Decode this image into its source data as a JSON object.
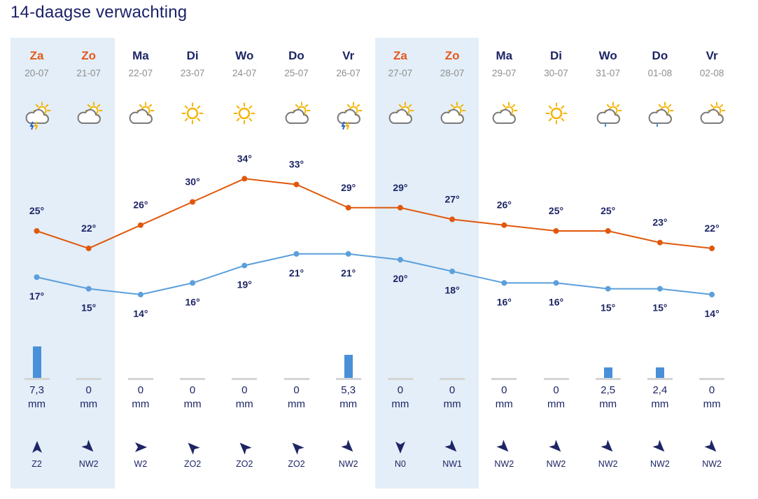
{
  "title": "14-daagse verwachting",
  "colors": {
    "max": "#e0580c",
    "min": "#5b9fdb",
    "weekend": "#e3eef8",
    "weekend_day": "#e4571a",
    "bar": "#4a90d9"
  },
  "days": [
    {
      "day": "Za",
      "date": "20-07",
      "weekend": true,
      "icon": "thunder-sun-icon",
      "max": 25,
      "min": 17,
      "precip": "7,3",
      "precip_mm": 7.3,
      "unit": "mm",
      "wind": "Z2",
      "wind_dir": "Z"
    },
    {
      "day": "Zo",
      "date": "21-07",
      "weekend": true,
      "icon": "partly-cloudy-icon",
      "max": 22,
      "min": 15,
      "precip": "0",
      "precip_mm": 0,
      "unit": "mm",
      "wind": "NW2",
      "wind_dir": "NW"
    },
    {
      "day": "Ma",
      "date": "22-07",
      "weekend": false,
      "icon": "partly-cloudy-icon",
      "max": 26,
      "min": 14,
      "precip": "0",
      "precip_mm": 0,
      "unit": "mm",
      "wind": "W2",
      "wind_dir": "W"
    },
    {
      "day": "Di",
      "date": "23-07",
      "weekend": false,
      "icon": "sun-icon",
      "max": 30,
      "min": 16,
      "precip": "0",
      "precip_mm": 0,
      "unit": "mm",
      "wind": "ZO2",
      "wind_dir": "ZO"
    },
    {
      "day": "Wo",
      "date": "24-07",
      "weekend": false,
      "icon": "sun-icon",
      "max": 34,
      "min": 19,
      "precip": "0",
      "precip_mm": 0,
      "unit": "mm",
      "wind": "ZO2",
      "wind_dir": "ZO"
    },
    {
      "day": "Do",
      "date": "25-07",
      "weekend": false,
      "icon": "partly-cloudy-icon",
      "max": 33,
      "min": 21,
      "precip": "0",
      "precip_mm": 0,
      "unit": "mm",
      "wind": "ZO2",
      "wind_dir": "ZO"
    },
    {
      "day": "Vr",
      "date": "26-07",
      "weekend": false,
      "icon": "thunder-sun-icon",
      "max": 29,
      "min": 21,
      "precip": "5,3",
      "precip_mm": 5.3,
      "unit": "mm",
      "wind": "NW2",
      "wind_dir": "NW"
    },
    {
      "day": "Za",
      "date": "27-07",
      "weekend": true,
      "icon": "partly-cloudy-icon",
      "max": 29,
      "min": 20,
      "precip": "0",
      "precip_mm": 0,
      "unit": "mm",
      "wind": "N0",
      "wind_dir": "N"
    },
    {
      "day": "Zo",
      "date": "28-07",
      "weekend": true,
      "icon": "partly-cloudy-icon",
      "max": 27,
      "min": 18,
      "precip": "0",
      "precip_mm": 0,
      "unit": "mm",
      "wind": "NW1",
      "wind_dir": "NW"
    },
    {
      "day": "Ma",
      "date": "29-07",
      "weekend": false,
      "icon": "partly-cloudy-icon",
      "max": 26,
      "min": 16,
      "precip": "0",
      "precip_mm": 0,
      "unit": "mm",
      "wind": "NW2",
      "wind_dir": "NW"
    },
    {
      "day": "Di",
      "date": "30-07",
      "weekend": false,
      "icon": "sun-icon",
      "max": 25,
      "min": 16,
      "precip": "0",
      "precip_mm": 0,
      "unit": "mm",
      "wind": "NW2",
      "wind_dir": "NW"
    },
    {
      "day": "Wo",
      "date": "31-07",
      "weekend": false,
      "icon": "rain-sun-icon",
      "max": 25,
      "min": 15,
      "precip": "2,5",
      "precip_mm": 2.5,
      "unit": "mm",
      "wind": "NW2",
      "wind_dir": "NW"
    },
    {
      "day": "Do",
      "date": "01-08",
      "weekend": false,
      "icon": "rain-sun-icon",
      "max": 23,
      "min": 15,
      "precip": "2,4",
      "precip_mm": 2.4,
      "unit": "mm",
      "wind": "NW2",
      "wind_dir": "NW"
    },
    {
      "day": "Vr",
      "date": "02-08",
      "weekend": false,
      "icon": "partly-cloudy-icon",
      "max": 22,
      "min": 14,
      "precip": "0",
      "precip_mm": 0,
      "unit": "mm",
      "wind": "NW2",
      "wind_dir": "NW"
    }
  ]
}
